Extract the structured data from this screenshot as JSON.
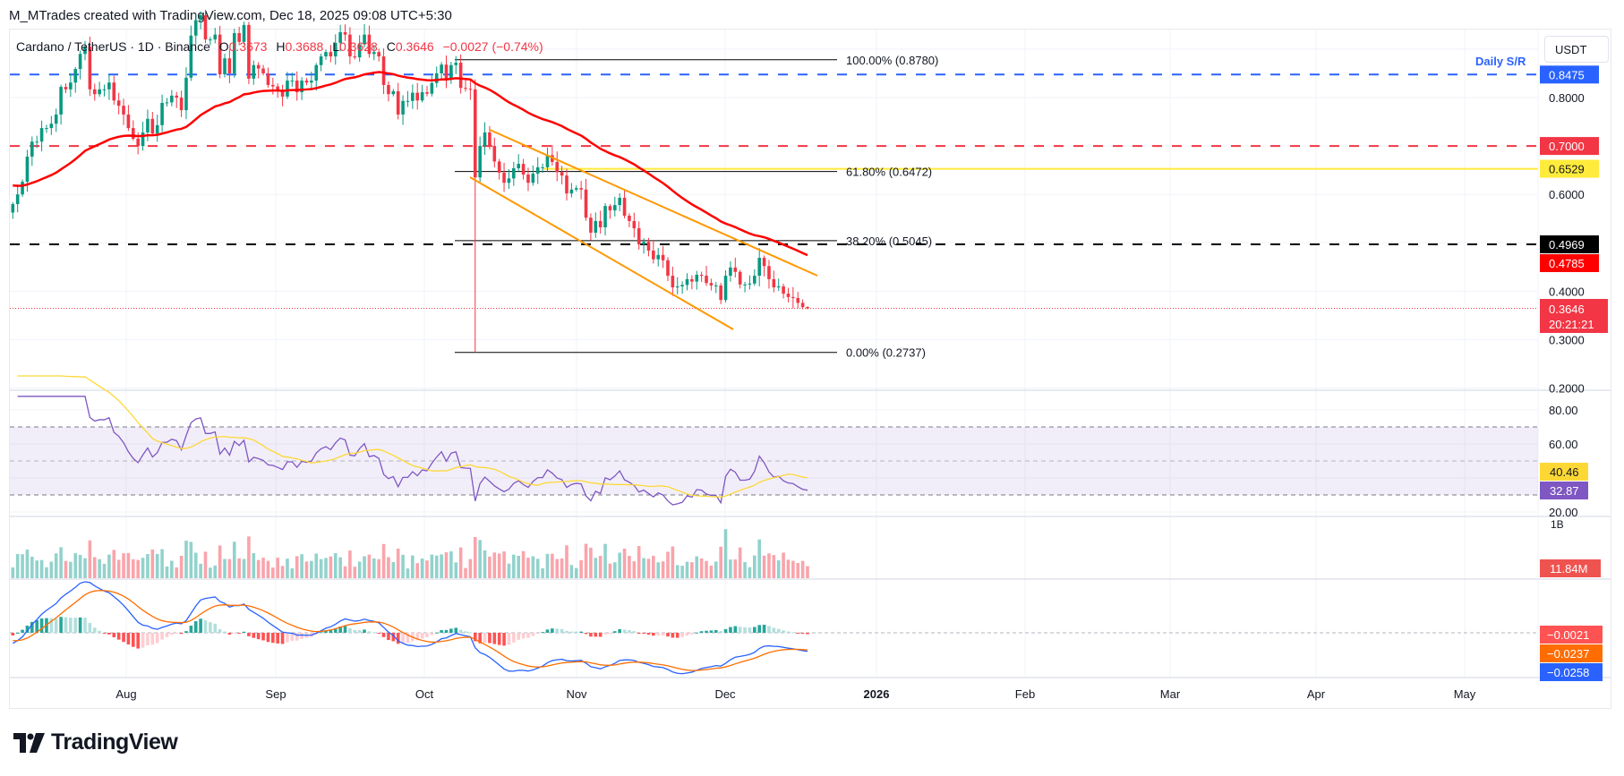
{
  "header": {
    "attribution": "M_MTrades created with TradingView.com, Dec 18, 2025 09:08 UTC+5:30"
  },
  "legend": {
    "symbol": "Cardano / TetherUS · 1D · Binance",
    "o_label": "O",
    "o": "0.3673",
    "h_label": "H",
    "h": "0.3688",
    "l_label": "L",
    "l": "0.3628",
    "c_label": "C",
    "c": "0.3646",
    "change": "−0.0027 (−0.74%)"
  },
  "currency_button": "USDT",
  "daily_sr_label": "Daily S/R",
  "logo_text": "TradingView",
  "colors": {
    "up": "#089981",
    "down": "#f23645",
    "ema": "#ff0000",
    "channel": "#ff9800",
    "rsi": "#7e57c2",
    "rsi_ma": "#fdd835",
    "macd": "#2962ff",
    "macd_signal": "#ff6d00"
  },
  "chart_data": {
    "type": "candlestick",
    "interval": "1D",
    "closes": [
      0.58,
      0.6,
      0.626,
      0.678,
      0.709,
      0.709,
      0.737,
      0.737,
      0.746,
      0.765,
      0.822,
      0.817,
      0.831,
      0.859,
      0.89,
      0.905,
      0.817,
      0.807,
      0.817,
      0.817,
      0.831,
      0.794,
      0.783,
      0.765,
      0.737,
      0.715,
      0.7,
      0.728,
      0.756,
      0.726,
      0.743,
      0.789,
      0.79,
      0.804,
      0.8,
      0.774,
      0.841,
      0.928,
      0.96,
      0.97,
      0.92,
      0.92,
      0.93,
      0.848,
      0.881,
      0.85,
      0.933,
      0.915,
      0.95,
      0.839,
      0.867,
      0.86,
      0.85,
      0.826,
      0.823,
      0.813,
      0.802,
      0.835,
      0.835,
      0.811,
      0.835,
      0.831,
      0.835,
      0.867,
      0.885,
      0.894,
      0.885,
      0.913,
      0.935,
      0.93,
      0.885,
      0.883,
      0.91,
      0.93,
      0.89,
      0.894,
      0.885,
      0.826,
      0.807,
      0.813,
      0.765,
      0.793,
      0.793,
      0.81,
      0.794,
      0.811,
      0.808,
      0.83,
      0.85,
      0.868,
      0.839,
      0.867,
      0.872,
      0.82,
      0.818,
      0.817,
      0.635,
      0.7,
      0.728,
      0.7,
      0.668,
      0.645,
      0.624,
      0.633,
      0.654,
      0.663,
      0.641,
      0.624,
      0.643,
      0.656,
      0.656,
      0.681,
      0.667,
      0.646,
      0.639,
      0.602,
      0.61,
      0.613,
      0.61,
      0.552,
      0.521,
      0.545,
      0.532,
      0.576,
      0.567,
      0.578,
      0.593,
      0.556,
      0.545,
      0.53,
      0.497,
      0.502,
      0.484,
      0.466,
      0.475,
      0.464,
      0.432,
      0.408,
      0.41,
      0.413,
      0.425,
      0.42,
      0.434,
      0.432,
      0.417,
      0.412,
      0.412,
      0.382,
      0.432,
      0.449,
      0.44,
      0.414,
      0.414,
      0.416,
      0.432,
      0.469,
      0.452,
      0.425,
      0.408,
      0.41,
      0.395,
      0.388,
      0.386,
      0.376,
      0.3673,
      0.3646
    ],
    "price_axis": {
      "ticks": [
        "0.8000",
        "0.6000",
        "0.4000",
        "0.3000",
        "0.2000"
      ],
      "tick_values": [
        0.8,
        0.6,
        0.4,
        0.3,
        0.2
      ],
      "range": [
        0.2,
        0.95
      ]
    },
    "time_axis": {
      "labels": [
        "Aug",
        "Sep",
        "Oct",
        "Nov",
        "Dec",
        "2026",
        "Feb",
        "Mar",
        "Apr",
        "May"
      ],
      "bold": [
        "2026"
      ]
    },
    "horizontal_levels": [
      {
        "value": 0.8475,
        "label": "0.8475",
        "color": "#2962ff",
        "style": "dashed"
      },
      {
        "value": 0.7,
        "label": "0.7000",
        "color": "#f23645",
        "style": "dashed"
      },
      {
        "value": 0.6529,
        "label": "0.6529",
        "color": "#ffeb3b",
        "style": "solid"
      },
      {
        "value": 0.4969,
        "label": "0.4969",
        "color": "#000000",
        "style": "dashed"
      }
    ],
    "ema": {
      "period": 50,
      "last_label": "0.4785"
    },
    "current_price": {
      "value": 0.3646,
      "label": "0.3646",
      "countdown": "20:21:21"
    },
    "fibonacci": [
      {
        "level": "100.00%",
        "value": 0.878,
        "label": "100.00% (0.8780)"
      },
      {
        "level": "61.80%",
        "value": 0.6472,
        "label": "61.80% (0.6472)"
      },
      {
        "level": "38.20%",
        "value": 0.5045,
        "label": "38.20% (0.5045)"
      },
      {
        "level": "0.00%",
        "value": 0.2737,
        "label": "0.00% (0.2737)"
      }
    ],
    "rsi": {
      "ticks": [
        "80.00",
        "60.00",
        "20.00"
      ],
      "tick_values": [
        80,
        60,
        20
      ],
      "bands": [
        70,
        50,
        30
      ],
      "value_label": "32.87",
      "ma_label": "40.46"
    },
    "volume": {
      "axis_label": "1B",
      "value_label": "11.84M"
    },
    "macd": {
      "histogram_label": "−0.0021",
      "signal_label": "−0.0237",
      "macd_label": "−0.0258"
    }
  }
}
